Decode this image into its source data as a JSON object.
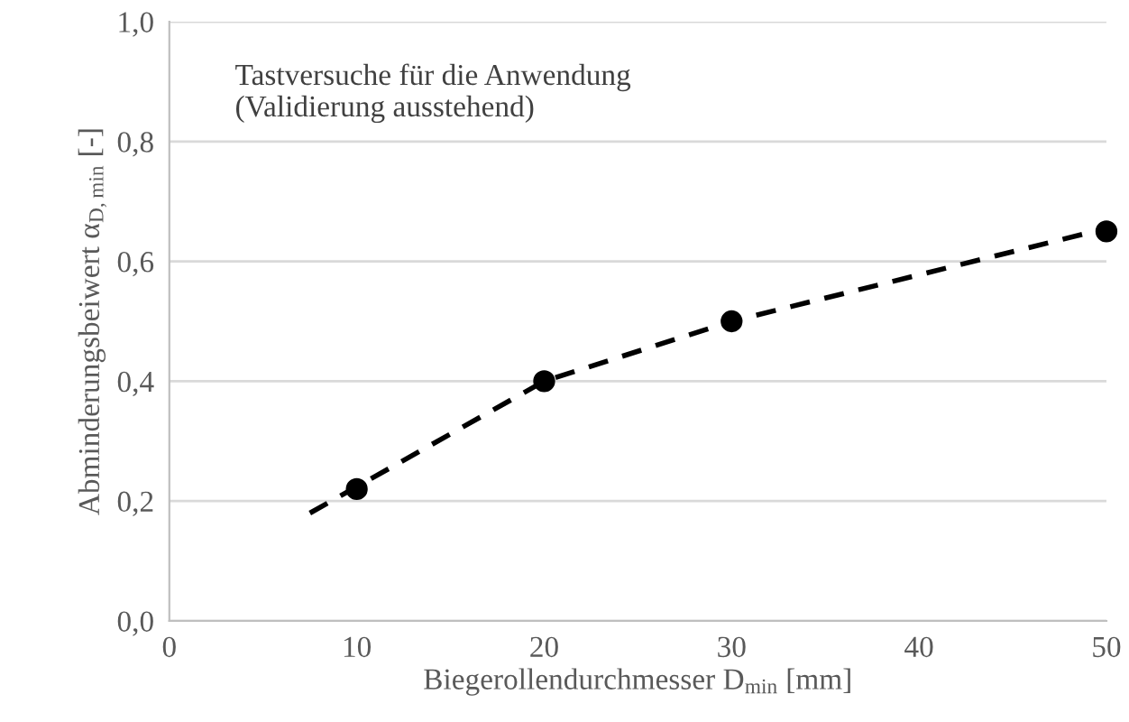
{
  "chart_data": {
    "type": "scatter",
    "xlabel": "Biegerollendurchmesser D$_{min}$ [mm]",
    "ylabel": "Abminderungsbeiwert α$_{D,min}$ [-]",
    "annotations": [
      "Tastversuche für die Anwendung\n(Validierung ausstehend)"
    ],
    "series": [
      {
        "type": "line",
        "color": "#000000",
        "line_style": "dashed",
        "marker": "none",
        "x": [
          7.5,
          20,
          30,
          50
        ],
        "values": [
          0.18,
          0.4,
          0.5,
          0.655
        ]
      },
      {
        "color": "#000000",
        "marker": "circle",
        "x": [
          10,
          20,
          30,
          50
        ],
        "values": [
          0.22,
          0.4,
          0.5,
          0.65
        ]
      }
    ],
    "xlim": [
      0,
      50
    ],
    "xticks": [
      0,
      10,
      20,
      30,
      40,
      50
    ],
    "ylim": [
      0,
      1.0
    ],
    "yticks": [
      {
        "value": 0,
        "label": "0,0"
      },
      {
        "value": 0.2,
        "label": "0,2"
      },
      {
        "value": 0.4,
        "label": "0,4"
      },
      {
        "value": 0.6,
        "label": "0,6"
      },
      {
        "value": 0.8,
        "label": "0,8"
      },
      {
        "value": 1.0,
        "label": "1,0"
      }
    ],
    "grid": "y",
    "legend": false
  }
}
